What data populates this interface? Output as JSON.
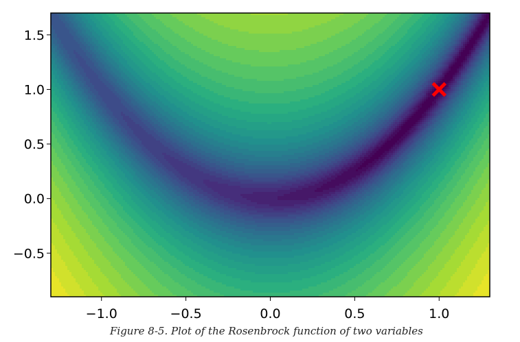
{
  "figure": {
    "caption": "Figure 8-5. Plot of the Rosenbrock function of two variables"
  },
  "chart_data": {
    "type": "contour",
    "function": "Rosenbrock f(x, y) = (1 - x)^2 + 100 (y - x^2)^2",
    "title": "",
    "xlabel": "",
    "ylabel": "",
    "xlim": [
      -1.3,
      1.3
    ],
    "ylim": [
      -0.9,
      1.7
    ],
    "xticks": [
      -1.0,
      -0.5,
      0.0,
      0.5,
      1.0
    ],
    "xtick_labels": [
      "−1.0",
      "−0.5",
      "0.0",
      "0.5",
      "1.0"
    ],
    "yticks": [
      1.5,
      1.0,
      0.5,
      0.0,
      -0.5
    ],
    "ytick_labels": [
      "1.5",
      "1.0",
      "0.5",
      "0.0",
      "−0.5"
    ],
    "colormap": "viridis",
    "filled": true,
    "grid": false,
    "markers": [
      {
        "name": "minimum",
        "x": 1.0,
        "y": 1.0,
        "symbol": "x",
        "color": "#ff0000"
      }
    ]
  }
}
